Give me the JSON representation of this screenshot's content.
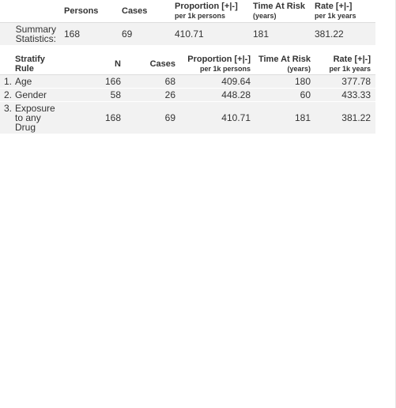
{
  "summary": {
    "headers": {
      "persons": "Persons",
      "cases": "Cases",
      "proportion": "Proportion [+|-]",
      "proportion_sub": "per 1k persons",
      "time_at_risk": "Time At Risk",
      "time_at_risk_sub": "(years)",
      "rate": "Rate [+|-]",
      "rate_sub": "per 1k years"
    },
    "row": {
      "label": "Summary Statistics:",
      "persons": "168",
      "cases": "69",
      "proportion": "410.71",
      "time_at_risk": "181",
      "rate": "381.22"
    }
  },
  "rules": {
    "headers": {
      "rule": "Stratify Rule",
      "n": "N",
      "cases": "Cases",
      "proportion": "Proportion [+|-]",
      "proportion_sub": "per 1k persons",
      "time_at_risk": "Time At Risk",
      "time_at_risk_sub": "(years)",
      "rate": "Rate [+|-]",
      "rate_sub": "per 1k years"
    },
    "rows": [
      {
        "idx": "1.",
        "name": "Age",
        "n": "166",
        "cases": "68",
        "proportion": "409.64",
        "time_at_risk": "180",
        "rate": "377.78"
      },
      {
        "idx": "2.",
        "name": "Gender",
        "n": "58",
        "cases": "26",
        "proportion": "448.28",
        "time_at_risk": "60",
        "rate": "433.33"
      },
      {
        "idx": "3.",
        "name": "Exposure to any Drug",
        "n": "168",
        "cases": "69",
        "proportion": "410.71",
        "time_at_risk": "181",
        "rate": "381.22"
      }
    ]
  }
}
